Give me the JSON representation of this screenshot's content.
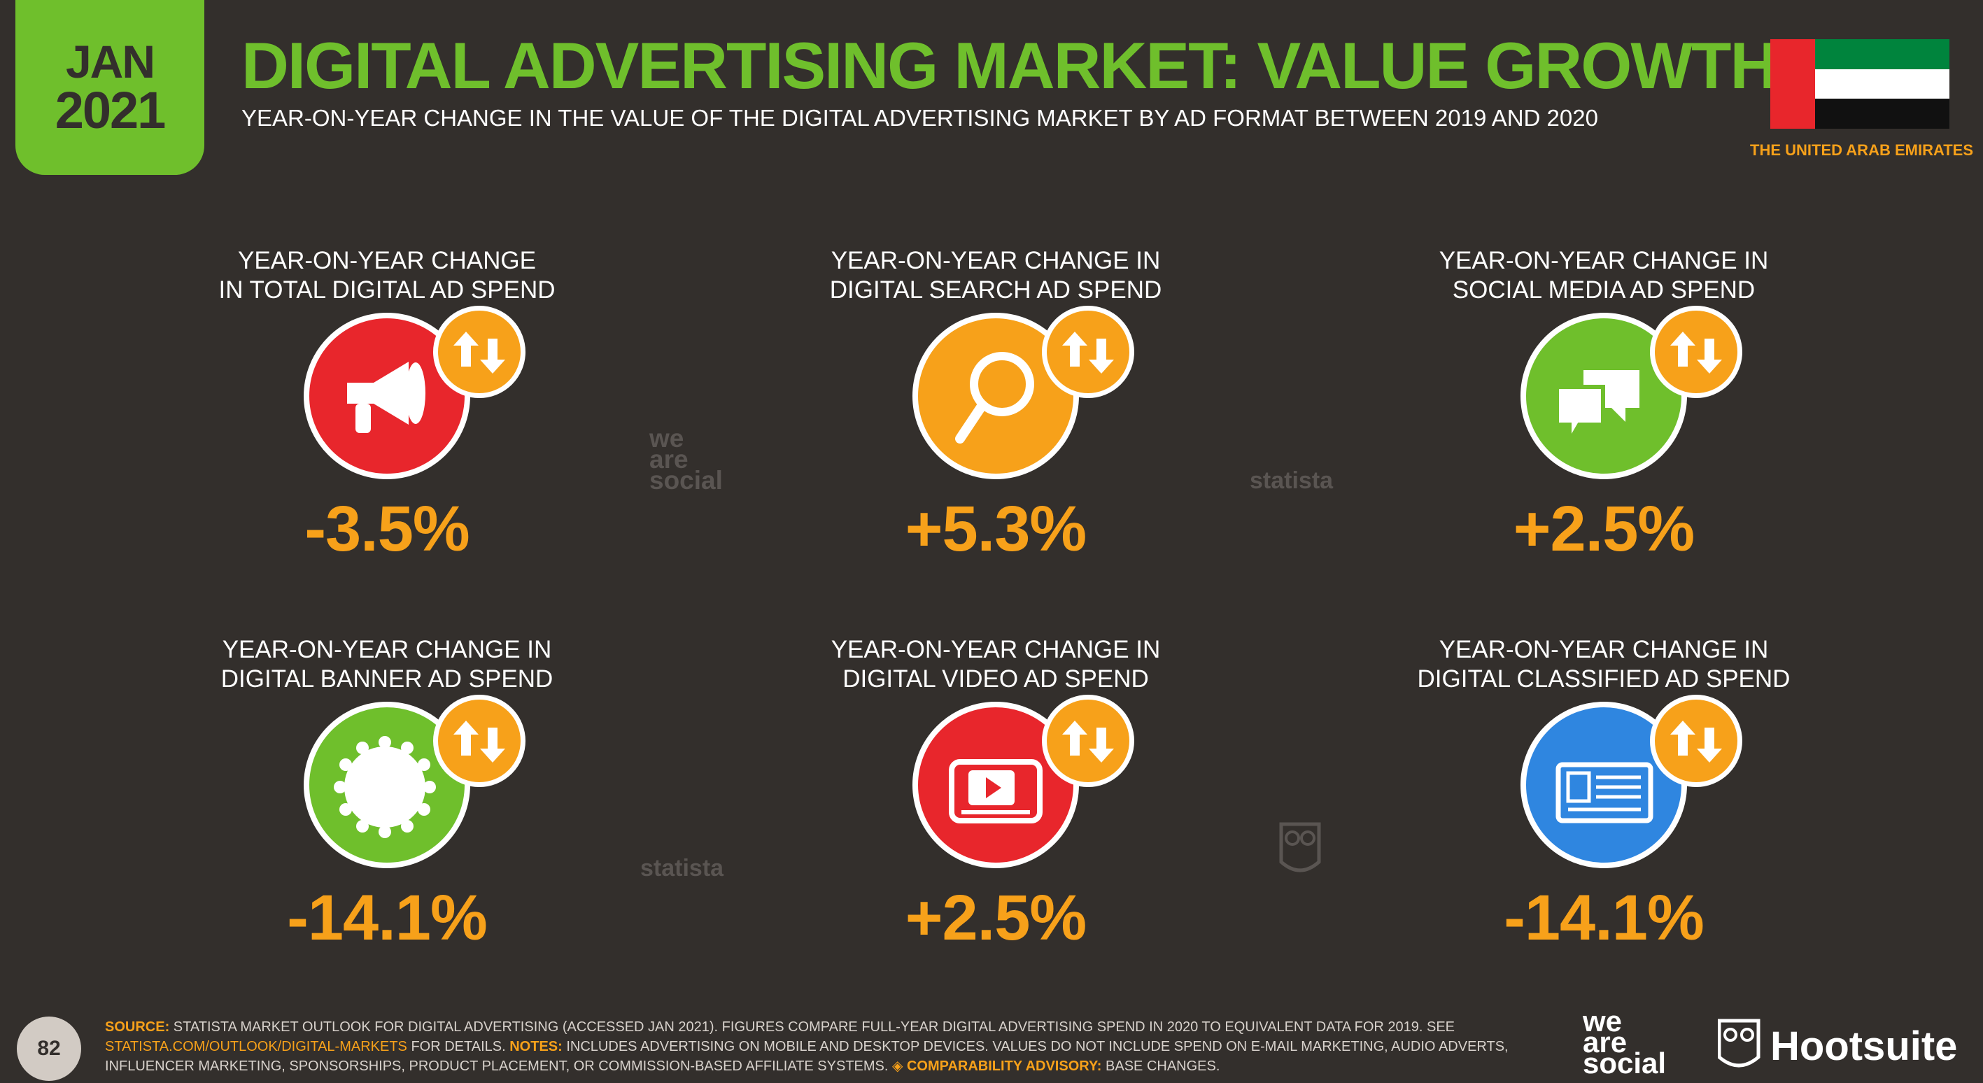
{
  "header": {
    "date_month": "JAN",
    "date_year": "2021",
    "title": "DIGITAL ADVERTISING MARKET: VALUE GROWTH",
    "subtitle": "YEAR-ON-YEAR CHANGE IN THE VALUE OF THE DIGITAL ADVERTISING MARKET BY AD FORMAT BETWEEN 2019 AND 2020",
    "country": "THE UNITED ARAB EMIRATES"
  },
  "colors": {
    "background": "#332f2c",
    "accent_green": "#6fbf2c",
    "accent_orange": "#f7a11a",
    "red": "#e8262c",
    "blue": "#2f86e0"
  },
  "cards": [
    {
      "label_line1": "YEAR-ON-YEAR CHANGE",
      "label_line2": "IN TOTAL DIGITAL AD SPEND",
      "value": "-3.5%",
      "icon": "megaphone-icon",
      "color": "#e8262c"
    },
    {
      "label_line1": "YEAR-ON-YEAR CHANGE IN",
      "label_line2": "DIGITAL SEARCH AD SPEND",
      "value": "+5.3%",
      "icon": "magnifier-icon",
      "color": "#f7a11a"
    },
    {
      "label_line1": "YEAR-ON-YEAR CHANGE IN",
      "label_line2": "SOCIAL MEDIA AD SPEND",
      "value": "+2.5%",
      "icon": "chat-bubbles-icon",
      "color": "#6fbf2c"
    },
    {
      "label_line1": "YEAR-ON-YEAR CHANGE IN",
      "label_line2": "DIGITAL BANNER AD SPEND",
      "value": "-14.1%",
      "icon": "banner-seal-icon",
      "color": "#6fbf2c"
    },
    {
      "label_line1": "YEAR-ON-YEAR CHANGE IN",
      "label_line2": "DIGITAL VIDEO AD SPEND",
      "value": "+2.5%",
      "icon": "video-player-icon",
      "color": "#e8262c"
    },
    {
      "label_line1": "YEAR-ON-YEAR CHANGE IN",
      "label_line2": "DIGITAL CLASSIFIED AD SPEND",
      "value": "-14.1%",
      "icon": "classified-listing-icon",
      "color": "#2f86e0"
    }
  ],
  "watermarks": {
    "we": "we",
    "are": "are",
    "social": "social",
    "statista": "statista"
  },
  "footer": {
    "page_number": "82",
    "source_label": "SOURCE:",
    "source_text": "STATISTA MARKET OUTLOOK FOR DIGITAL ADVERTISING (ACCESSED JAN 2021). FIGURES COMPARE FULL-YEAR DIGITAL ADVERTISING SPEND IN 2020 TO EQUIVALENT DATA FOR 2019.",
    "see_text": "SEE",
    "link_text": "STATISTA.COM/OUTLOOK/DIGITAL-MARKETS",
    "details_text": "FOR DETAILS.",
    "notes_label": "NOTES:",
    "notes_text": "INCLUDES ADVERTISING ON MOBILE AND DESKTOP DEVICES. VALUES DO NOT INCLUDE SPEND ON E-MAIL MARKETING, AUDIO ADVERTS, INFLUENCER MARKETING, SPONSORSHIPS, PRODUCT PLACEMENT, OR COMMISSION-BASED AFFILIATE SYSTEMS.",
    "advisory_label": "◈ COMPARABILITY ADVISORY:",
    "advisory_text": "BASE CHANGES.",
    "brand_we": "we",
    "brand_are": "are",
    "brand_social": "social",
    "brand_hootsuite": "Hootsuite"
  }
}
